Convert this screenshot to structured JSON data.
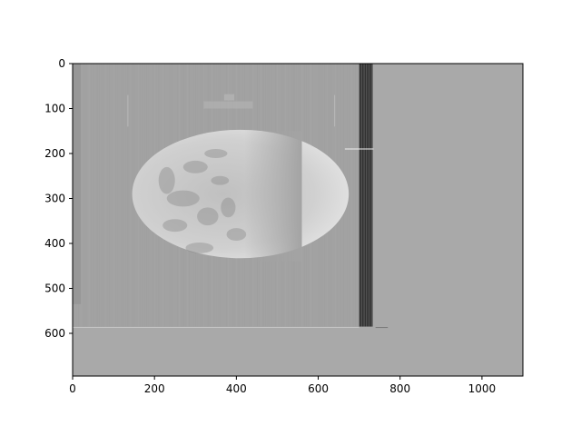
{
  "chart_data": {
    "type": "heatmap",
    "title": "",
    "xlabel": "",
    "ylabel": "",
    "xlim": [
      0,
      1100
    ],
    "ylim": [
      695,
      0
    ],
    "x_ticks": [
      0,
      200,
      400,
      600,
      800,
      1000
    ],
    "y_ticks": [
      0,
      100,
      200,
      300,
      400,
      500,
      600
    ],
    "x_tick_labels": [
      "0",
      "200",
      "400",
      "600",
      "800",
      "1000"
    ],
    "y_tick_labels": [
      "0",
      "100",
      "200",
      "300",
      "400",
      "500",
      "600"
    ],
    "colormap": "gray",
    "background_color": "#a9a9a9",
    "image_content": "grayscale image of Earth (crescent view) with a dark vertical band near x=700-730",
    "regions": {
      "image_panel": {
        "x": [
          0,
          700
        ],
        "y": [
          0,
          585
        ],
        "color": "#a2a2a2"
      },
      "dark_band": {
        "x": [
          700,
          733
        ],
        "y": [
          0,
          585
        ],
        "color": "#3c3c3c"
      },
      "earth": {
        "center": [
          410,
          290
        ],
        "radius": 270,
        "color": "#c8c8c8"
      }
    },
    "grid": false
  }
}
